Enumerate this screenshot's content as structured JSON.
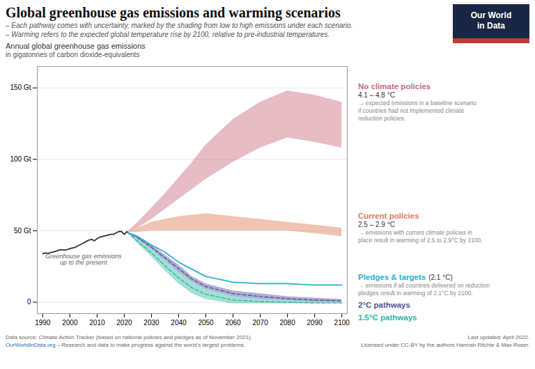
{
  "chart_data": {
    "type": "line",
    "title": "Global greenhouse gas emissions and warming scenarios",
    "subtitle": [
      "– Each pathway comes with uncertainty, marked by the shading from low to high emissions under each scenario.",
      "– Warming refers to the expected global temperature rise by 2100, relative to pre-industrial temperatures."
    ],
    "ylabel": [
      "Annual global greenhouse gas emissions",
      "in gigatonnes of carbon dioxide-equivalents"
    ],
    "xlim": [
      1988,
      2102
    ],
    "xticks": [
      1990,
      2000,
      2010,
      2020,
      2030,
      2040,
      2050,
      2060,
      2070,
      2080,
      2090,
      2100
    ],
    "ylim": [
      -8,
      165
    ],
    "yticks": [
      0,
      {
        "value": 50,
        "label": "50 Gt"
      },
      {
        "value": 100,
        "label": "100 Gt"
      },
      {
        "value": 150,
        "label": "150 Gt"
      }
    ],
    "grid": true,
    "series": [
      {
        "name": "No climate policies",
        "type": "band",
        "color": "#c96b7e",
        "x": [
          2021,
          2025,
          2030,
          2035,
          2040,
          2045,
          2050,
          2060,
          2070,
          2080,
          2090,
          2100
        ],
        "low": [
          49,
          52,
          58,
          65,
          72,
          79,
          86,
          98,
          108,
          115,
          112,
          108
        ],
        "high": [
          49,
          56,
          66,
          76,
          87,
          98,
          110,
          128,
          140,
          148,
          145,
          140
        ],
        "warming": "4.1 – 4.8 °C",
        "note": "→ expected emissions in a baseline scenario\nif countries had not implemented climate\nreduction policies."
      },
      {
        "name": "Current policies",
        "type": "band",
        "color": "#e07b55",
        "x": [
          2021,
          2025,
          2030,
          2035,
          2040,
          2045,
          2050,
          2060,
          2070,
          2080,
          2090,
          2100
        ],
        "low": [
          49,
          49,
          50,
          50,
          50,
          50,
          50,
          50,
          50,
          50,
          48,
          46
        ],
        "high": [
          49,
          52,
          56,
          58,
          60,
          61,
          62,
          60,
          58,
          56,
          54,
          52
        ],
        "warming": "2.5 – 2.9 °C",
        "note": "→ emissions with current climate policies in\nplace result in warming of 2.5 to 2.9°C by 2100."
      },
      {
        "name": "Pledges & targets",
        "type": "line",
        "color": "#2bafd4",
        "x": [
          2021,
          2025,
          2030,
          2035,
          2040,
          2045,
          2050,
          2060,
          2070,
          2080,
          2090,
          2100
        ],
        "values": [
          49,
          46,
          40,
          35,
          28,
          23,
          18,
          14,
          13,
          13,
          12,
          12
        ],
        "warming": "(2.1 °C)",
        "note": "→ emissions if all countries delivered on reduction\npledges result in warming of 2.1°C by 2100."
      },
      {
        "name": "2°C pathways",
        "type": "band",
        "color": "#5050a0",
        "line_style": "dashed",
        "x": [
          2021,
          2025,
          2030,
          2035,
          2040,
          2045,
          2050,
          2060,
          2070,
          2080,
          2090,
          2100
        ],
        "low": [
          49,
          44,
          37,
          29,
          21,
          14,
          9,
          4,
          2,
          1,
          0,
          0
        ],
        "high": [
          49,
          46,
          40,
          33,
          26,
          18,
          13,
          8,
          6,
          4,
          3,
          2
        ],
        "center": [
          49,
          45,
          38.5,
          31,
          23.5,
          16,
          11,
          6,
          4,
          2.5,
          1.5,
          1
        ]
      },
      {
        "name": "1.5°C pathways",
        "type": "band",
        "color": "#30b8a0",
        "line_style": "dashed",
        "x": [
          2021,
          2025,
          2030,
          2035,
          2040,
          2045,
          2050,
          2060,
          2070,
          2080,
          2090,
          2100
        ],
        "low": [
          49,
          41,
          32,
          22,
          13,
          6,
          2,
          -1,
          -1,
          -1,
          -1,
          -1
        ],
        "high": [
          49,
          44,
          37,
          29,
          21,
          14,
          9,
          4,
          2,
          1,
          0,
          0
        ],
        "center": [
          49,
          42.5,
          34.5,
          25.5,
          17,
          10,
          5.5,
          1.5,
          0.5,
          0,
          -0.5,
          -0.5
        ]
      },
      {
        "type": "line",
        "color": "#333333",
        "x": [
          1990,
          1991,
          1992,
          1993,
          1994,
          1995,
          1996,
          1997,
          1998,
          1999,
          2000,
          2001,
          2002,
          2003,
          2004,
          2005,
          2006,
          2007,
          2008,
          2009,
          2010,
          2011,
          2012,
          2013,
          2014,
          2015,
          2016,
          2017,
          2018,
          2019,
          2020,
          2021
        ],
        "values": [
          34,
          34.5,
          34.2,
          34.8,
          35.2,
          35.8,
          36.5,
          36.8,
          36.5,
          36.8,
          37.5,
          38.0,
          38.5,
          39.5,
          40.5,
          41.5,
          42.5,
          43.5,
          44.0,
          43.0,
          44.5,
          45.5,
          46.0,
          46.5,
          47.0,
          47.5,
          47.5,
          48.5,
          49.5,
          49.5,
          47.5,
          49.5
        ]
      }
    ],
    "annotations": [
      {
        "x": 2005,
        "y": 36,
        "text": "Greenhouse gas emissions\nup to the present"
      }
    ],
    "logo": {
      "lines": [
        "Our World",
        "in Data"
      ],
      "color": "#1a2744",
      "accent": "#c0392b"
    },
    "footer": {
      "source": "Data source: Climate Action Tracker (based on national policies and pledges as of November 2021).",
      "url": "OurWorldInData.org",
      "url_color": "#1a6fa8",
      "url_rest": " – Research and data to make progress against the world’s largest problems.",
      "updated": "Last updated: April 2022.",
      "license": "Licensed under CC-BY by the authors Hannah Ritchie & Max Roser."
    }
  }
}
